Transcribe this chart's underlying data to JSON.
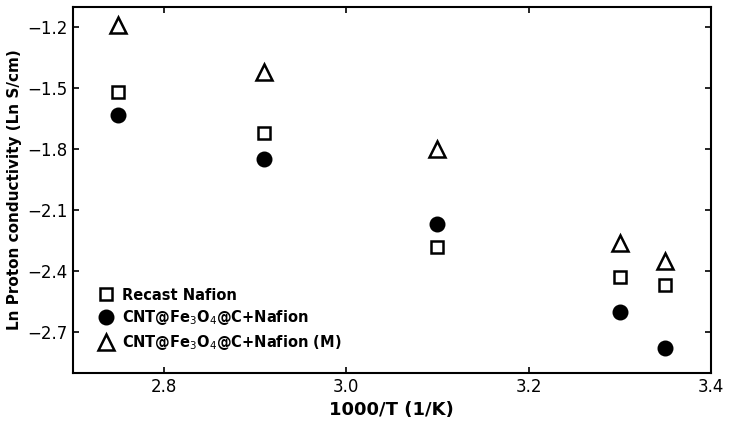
{
  "recast_nafion_x": [
    2.75,
    2.91,
    3.1,
    3.3,
    3.35
  ],
  "recast_nafion_y": [
    -1.52,
    -1.72,
    -2.28,
    -2.43,
    -2.47
  ],
  "cnt_nafion_x": [
    2.75,
    2.91,
    3.1,
    3.3,
    3.35
  ],
  "cnt_nafion_y": [
    -1.63,
    -1.85,
    -2.17,
    -2.6,
    -2.78
  ],
  "cnt_nafion_m_x": [
    2.75,
    2.91,
    3.1,
    3.3,
    3.35
  ],
  "cnt_nafion_m_y": [
    -1.19,
    -1.42,
    -1.8,
    -2.26,
    -2.35
  ],
  "xlabel": "1000/T (1/K)",
  "ylabel": "Ln Proton conductivity (Ln S/cm)",
  "xlim": [
    2.7,
    3.4
  ],
  "ylim": [
    -2.9,
    -1.1
  ],
  "xticks": [
    2.8,
    3.0,
    3.2,
    3.4
  ],
  "yticks": [
    -1.2,
    -1.5,
    -1.8,
    -2.1,
    -2.4,
    -2.7
  ],
  "legend_labels": [
    "Recast Nafion",
    "CNT@Fe$_{3}$O$_{4}$@C+Nafion",
    "CNT@Fe$_{3}$O$_{4}$@C+Nafion (M)"
  ],
  "marker_size_square": 9,
  "marker_size_circle": 10,
  "marker_size_triangle": 11,
  "linewidth_spine": 1.5
}
